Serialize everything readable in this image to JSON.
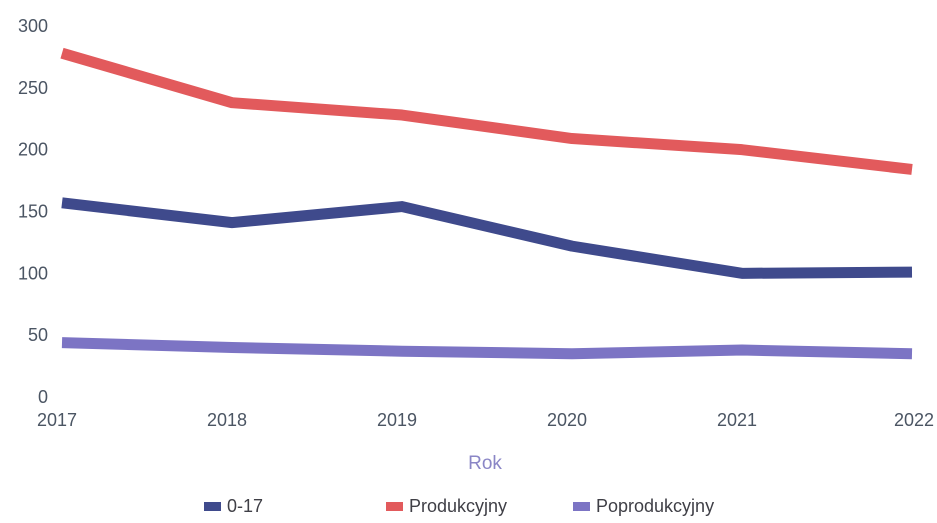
{
  "chart_data": {
    "type": "line",
    "title": "",
    "xlabel": "Rok",
    "ylabel": "",
    "x": [
      "2017",
      "2018",
      "2019",
      "2020",
      "2021",
      "2022"
    ],
    "yticks": [
      "0",
      "50",
      "100",
      "150",
      "200",
      "250",
      "300"
    ],
    "ylim": [
      0,
      300
    ],
    "grid": false,
    "legend_position": "bottom",
    "series": [
      {
        "name": "0-17",
        "color": "#3f4a8c",
        "values": [
          157,
          141,
          154,
          122,
          100,
          101
        ]
      },
      {
        "name": "Produkcyjny",
        "color": "#e25a5c",
        "values": [
          278,
          238,
          228,
          209,
          200,
          184
        ]
      },
      {
        "name": "Poprodukcyjny",
        "color": "#7c74c4",
        "values": [
          44,
          40,
          37,
          35,
          38,
          35
        ]
      }
    ]
  }
}
